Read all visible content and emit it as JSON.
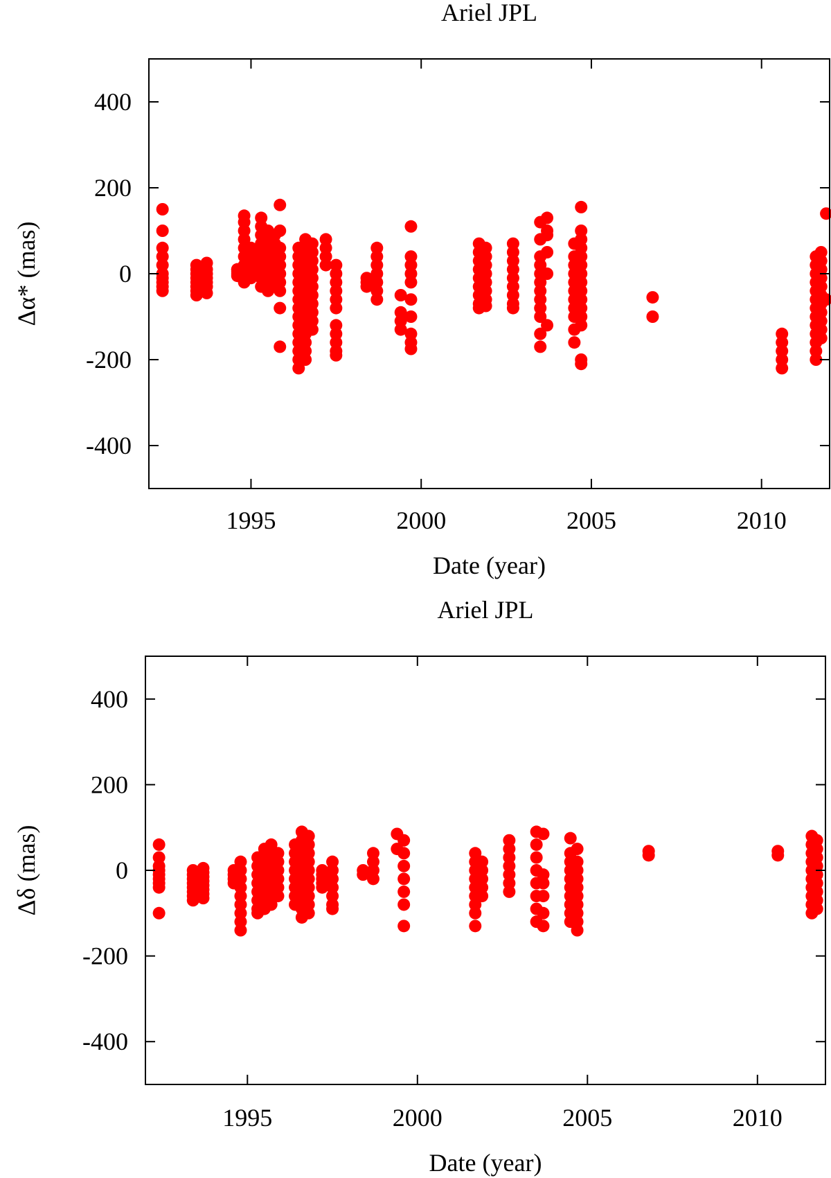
{
  "colors": {
    "points": "#ff0000",
    "axes": "#000000",
    "background": "#ffffff"
  },
  "chart_data": [
    {
      "type": "scatter",
      "title": "Ariel JPL",
      "xlabel": "Date (year)",
      "ylabel": "Δα* (mas)",
      "xlim": [
        1992,
        2012
      ],
      "ylim": [
        -500,
        500
      ],
      "xticks": [
        1995,
        2000,
        2005,
        2010
      ],
      "yticks": [
        -400,
        -200,
        0,
        200,
        400
      ],
      "xtick_labels": [
        "1995",
        "2000",
        "2005",
        "2010"
      ],
      "ytick_labels": [
        "-400",
        "-200",
        "0",
        "200",
        "400"
      ],
      "grid": false,
      "legend": "none",
      "series": [
        {
          "clusters": [
            {
              "x": 1992.4,
              "values": [
                150,
                100,
                60,
                40,
                20,
                0,
                -10,
                -20,
                -30,
                -40
              ]
            },
            {
              "x": 1993.4,
              "values": [
                20,
                10,
                0,
                -10,
                -20,
                -30,
                -40,
                -50
              ]
            },
            {
              "x": 1993.7,
              "values": [
                25,
                10,
                0,
                -10,
                -20,
                -30,
                -45
              ]
            },
            {
              "x": 1994.6,
              "values": [
                10,
                0,
                5,
                -5,
                10
              ]
            },
            {
              "x": 1994.8,
              "values": [
                135,
                120,
                100,
                80,
                60,
                40,
                20,
                0,
                -10,
                -20
              ]
            },
            {
              "x": 1995.0,
              "values": [
                60,
                40,
                20,
                10,
                0,
                -10
              ]
            },
            {
              "x": 1995.3,
              "values": [
                130,
                110,
                90,
                70,
                50,
                30,
                10,
                -10,
                -30
              ]
            },
            {
              "x": 1995.5,
              "values": [
                100,
                80,
                60,
                40,
                20,
                0,
                -20,
                -40
              ]
            },
            {
              "x": 1995.7,
              "values": [
                90,
                70,
                50,
                30,
                10,
                -10,
                -30
              ]
            },
            {
              "x": 1995.85,
              "values": [
                160,
                100,
                60,
                40,
                20,
                0,
                -20,
                -40,
                -80,
                -170
              ]
            },
            {
              "x": 1996.4,
              "values": [
                60,
                40,
                20,
                0,
                -20,
                -40,
                -60,
                -80,
                -100,
                -120,
                -140,
                -160,
                -180,
                -200,
                -220
              ]
            },
            {
              "x": 1996.6,
              "values": [
                80,
                60,
                40,
                20,
                0,
                -20,
                -40,
                -60,
                -80,
                -100,
                -120,
                -140,
                -160,
                -180,
                -200
              ]
            },
            {
              "x": 1996.8,
              "values": [
                70,
                50,
                30,
                10,
                -10,
                -30,
                -50,
                -70,
                -90,
                -110,
                -130
              ]
            },
            {
              "x": 1997.2,
              "values": [
                80,
                60,
                40,
                20
              ]
            },
            {
              "x": 1997.5,
              "values": [
                20,
                0,
                -20,
                -40,
                -60,
                -80,
                -120,
                -140,
                -160,
                -180,
                -190
              ]
            },
            {
              "x": 1998.4,
              "values": [
                -10,
                -20,
                -30
              ]
            },
            {
              "x": 1998.7,
              "values": [
                60,
                40,
                20,
                0,
                -20,
                -40,
                -60
              ]
            },
            {
              "x": 1999.4,
              "values": [
                -50,
                -90,
                -110,
                -130
              ]
            },
            {
              "x": 1999.7,
              "values": [
                110,
                40,
                20,
                0,
                -20,
                -60,
                -100,
                -140,
                -160,
                -175
              ]
            },
            {
              "x": 2001.7,
              "values": [
                70,
                50,
                30,
                10,
                -10,
                -30,
                -50,
                -70,
                -80
              ]
            },
            {
              "x": 2001.9,
              "values": [
                60,
                40,
                20,
                0,
                -20,
                -40,
                -60,
                -75
              ]
            },
            {
              "x": 2002.7,
              "values": [
                70,
                50,
                30,
                10,
                -10,
                -30,
                -50,
                -70,
                -80
              ]
            },
            {
              "x": 2003.5,
              "values": [
                120,
                80,
                40,
                20,
                0,
                -20,
                -40,
                -60,
                -80,
                -100,
                -140,
                -170
              ]
            },
            {
              "x": 2003.7,
              "values": [
                130,
                100,
                90,
                50,
                0,
                -120
              ]
            },
            {
              "x": 2004.5,
              "values": [
                70,
                40,
                20,
                0,
                -20,
                -40,
                -60,
                -80,
                -100,
                -130,
                -160
              ]
            },
            {
              "x": 2004.7,
              "values": [
                155,
                100,
                80,
                60,
                40,
                20,
                0,
                -20,
                -40,
                -60,
                -80,
                -100,
                -120,
                -200,
                -210
              ]
            },
            {
              "x": 2006.8,
              "values": [
                -55,
                -100
              ]
            },
            {
              "x": 2010.6,
              "values": [
                -140,
                -160,
                -180,
                -200,
                -220
              ]
            },
            {
              "x": 2011.6,
              "values": [
                40,
                20,
                0,
                -20,
                -40,
                -60,
                -80,
                -100,
                -120,
                -140,
                -160,
                -180,
                -200
              ]
            },
            {
              "x": 2011.75,
              "values": [
                50,
                30,
                10,
                -10,
                -30,
                -50,
                -70,
                -90,
                -110,
                -130,
                -150
              ]
            },
            {
              "x": 2011.9,
              "values": [
                140,
                -60
              ]
            }
          ]
        }
      ]
    },
    {
      "type": "scatter",
      "title": "Ariel JPL",
      "xlabel": "Date (year)",
      "ylabel": "Δδ (mas)",
      "xlim": [
        1992,
        2012
      ],
      "ylim": [
        -500,
        500
      ],
      "xticks": [
        1995,
        2000,
        2005,
        2010
      ],
      "yticks": [
        -400,
        -200,
        0,
        200,
        400
      ],
      "xtick_labels": [
        "1995",
        "2000",
        "2005",
        "2010"
      ],
      "ytick_labels": [
        "-400",
        "-200",
        "0",
        "200",
        "400"
      ],
      "grid": false,
      "legend": "none",
      "series": [
        {
          "clusters": [
            {
              "x": 1992.4,
              "values": [
                60,
                30,
                10,
                0,
                -10,
                -20,
                -30,
                -40,
                -100
              ]
            },
            {
              "x": 1993.4,
              "values": [
                0,
                -10,
                -20,
                -30,
                -40,
                -50,
                -60,
                -70
              ]
            },
            {
              "x": 1993.7,
              "values": [
                5,
                -5,
                -15,
                -25,
                -35,
                -45,
                -55,
                -65
              ]
            },
            {
              "x": 1994.6,
              "values": [
                0,
                -10,
                -20,
                -30
              ]
            },
            {
              "x": 1994.8,
              "values": [
                20,
                0,
                -20,
                -40,
                -60,
                -80,
                -100,
                -120,
                -140
              ]
            },
            {
              "x": 1995.3,
              "values": [
                30,
                10,
                -10,
                -30,
                -50,
                -70,
                -90,
                -100
              ]
            },
            {
              "x": 1995.5,
              "values": [
                50,
                30,
                10,
                -10,
                -30,
                -50,
                -70,
                -90
              ]
            },
            {
              "x": 1995.7,
              "values": [
                60,
                40,
                20,
                0,
                -20,
                -40,
                -60,
                -80
              ]
            },
            {
              "x": 1995.9,
              "values": [
                40,
                20,
                0,
                -20,
                -40,
                -60
              ]
            },
            {
              "x": 1996.4,
              "values": [
                60,
                40,
                20,
                0,
                -20,
                -40,
                -60,
                -80
              ]
            },
            {
              "x": 1996.6,
              "values": [
                90,
                70,
                50,
                30,
                10,
                -10,
                -30,
                -50,
                -70,
                -90,
                -110
              ]
            },
            {
              "x": 1996.8,
              "values": [
                80,
                60,
                40,
                20,
                0,
                -20,
                -40,
                -60,
                -80,
                -100
              ]
            },
            {
              "x": 1997.2,
              "values": [
                0,
                -10,
                -20,
                -30,
                -40
              ]
            },
            {
              "x": 1997.5,
              "values": [
                20,
                0,
                -20,
                -40,
                -60,
                -80,
                -90
              ]
            },
            {
              "x": 1998.4,
              "values": [
                0,
                -10
              ]
            },
            {
              "x": 1998.7,
              "values": [
                40,
                20,
                0,
                -20
              ]
            },
            {
              "x": 1999.4,
              "values": [
                85,
                50
              ]
            },
            {
              "x": 1999.6,
              "values": [
                70,
                40,
                10,
                -20,
                -50,
                -80,
                -130
              ]
            },
            {
              "x": 2001.7,
              "values": [
                40,
                20,
                0,
                -20,
                -40,
                -60,
                -80,
                -100,
                -130
              ]
            },
            {
              "x": 2001.9,
              "values": [
                20,
                0,
                -20,
                -40,
                -60
              ]
            },
            {
              "x": 2002.7,
              "values": [
                70,
                50,
                30,
                10,
                -10,
                -30,
                -50
              ]
            },
            {
              "x": 2003.5,
              "values": [
                90,
                60,
                30,
                0,
                -30,
                -60,
                -90,
                -120
              ]
            },
            {
              "x": 2003.7,
              "values": [
                85,
                -10,
                -30,
                -60,
                -100,
                -130
              ]
            },
            {
              "x": 2004.5,
              "values": [
                75,
                40,
                20,
                0,
                -20,
                -40,
                -60,
                -80,
                -100,
                -120
              ]
            },
            {
              "x": 2004.7,
              "values": [
                50,
                20,
                0,
                -20,
                -40,
                -60,
                -80,
                -100,
                -120,
                -140
              ]
            },
            {
              "x": 2006.8,
              "values": [
                45,
                35
              ]
            },
            {
              "x": 2010.6,
              "values": [
                45,
                35
              ]
            },
            {
              "x": 2011.6,
              "values": [
                80,
                60,
                40,
                20,
                0,
                -20,
                -40,
                -60,
                -80,
                -100
              ]
            },
            {
              "x": 2011.75,
              "values": [
                70,
                50,
                30,
                10,
                -10,
                -30,
                -50,
                -70,
                -90
              ]
            }
          ]
        }
      ]
    }
  ]
}
